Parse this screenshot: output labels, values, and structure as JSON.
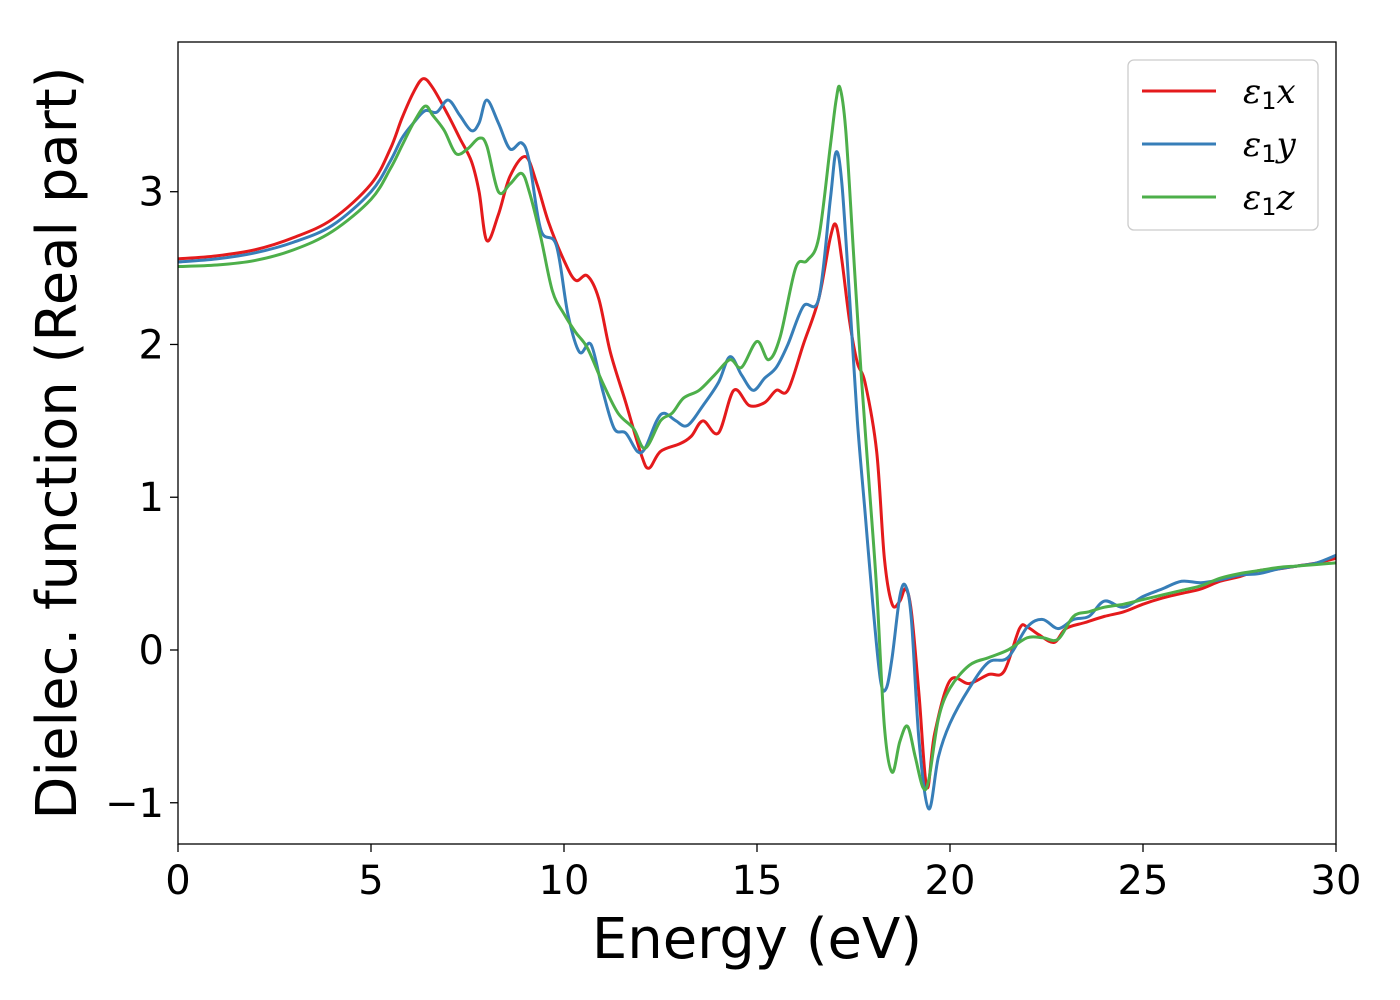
{
  "chart_data": {
    "type": "line",
    "xlabel": "Energy (eV)",
    "ylabel": "Dielec. function (Real part)",
    "xlim": [
      0,
      30
    ],
    "ylim": [
      -1.27,
      3.98
    ],
    "xticks": [
      0,
      5,
      10,
      15,
      20,
      25,
      30
    ],
    "xtick_labels": [
      "0",
      "5",
      "10",
      "15",
      "20",
      "25",
      "30"
    ],
    "yticks": [
      -1,
      0,
      1,
      2,
      3
    ],
    "ytick_labels": [
      "−1",
      "0",
      "1",
      "2",
      "3"
    ],
    "grid": false,
    "legend_position": "top-right",
    "series": [
      {
        "name": "ε₁x",
        "legend_base": "ε",
        "legend_sub": "1",
        "legend_var": "x",
        "color": "#e41a1c",
        "x": [
          0,
          1,
          2,
          3,
          4,
          5,
          5.5,
          5.8,
          6.1,
          6.35,
          6.6,
          7.0,
          7.3,
          7.6,
          7.8,
          8.0,
          8.3,
          8.6,
          9.0,
          9.3,
          9.6,
          10.0,
          10.3,
          10.6,
          10.9,
          11.2,
          11.6,
          12.0,
          12.2,
          12.5,
          13.0,
          13.3,
          13.6,
          14.0,
          14.4,
          14.8,
          15.2,
          15.5,
          15.8,
          16.2,
          16.6,
          16.9,
          17.05,
          17.2,
          17.4,
          17.6,
          17.8,
          18.1,
          18.3,
          18.5,
          18.7,
          18.85,
          19.0,
          19.2,
          19.4,
          19.6,
          20.0,
          20.5,
          21.0,
          21.4,
          21.8,
          22.0,
          22.3,
          22.7,
          23.0,
          23.5,
          24.0,
          24.5,
          25.0,
          25.5,
          26.0,
          26.5,
          27.0,
          27.5,
          28.0,
          28.5,
          29.0,
          29.5,
          30.0
        ],
        "y": [
          2.56,
          2.58,
          2.62,
          2.7,
          2.82,
          3.05,
          3.28,
          3.48,
          3.65,
          3.74,
          3.68,
          3.5,
          3.35,
          3.2,
          3.0,
          2.68,
          2.85,
          3.1,
          3.23,
          3.05,
          2.8,
          2.55,
          2.42,
          2.45,
          2.3,
          1.95,
          1.62,
          1.28,
          1.19,
          1.3,
          1.35,
          1.4,
          1.5,
          1.42,
          1.7,
          1.6,
          1.62,
          1.7,
          1.7,
          2.0,
          2.3,
          2.7,
          2.78,
          2.55,
          2.15,
          1.88,
          1.75,
          1.3,
          0.6,
          0.3,
          0.32,
          0.4,
          0.25,
          -0.3,
          -0.9,
          -0.55,
          -0.2,
          -0.22,
          -0.16,
          -0.14,
          0.14,
          0.15,
          0.1,
          0.05,
          0.14,
          0.18,
          0.22,
          0.25,
          0.3,
          0.34,
          0.37,
          0.4,
          0.45,
          0.48,
          0.52,
          0.53,
          0.55,
          0.57,
          0.6
        ]
      },
      {
        "name": "ε₁y",
        "legend_base": "ε",
        "legend_sub": "1",
        "legend_var": "y",
        "color": "#377eb8",
        "x": [
          0,
          1,
          2,
          3,
          4,
          5,
          5.5,
          5.8,
          6.1,
          6.4,
          6.7,
          7.0,
          7.3,
          7.6,
          7.8,
          8.0,
          8.3,
          8.6,
          8.9,
          9.1,
          9.4,
          9.8,
          10.1,
          10.4,
          10.7,
          11.0,
          11.3,
          11.6,
          11.9,
          12.1,
          12.4,
          12.6,
          12.9,
          13.2,
          13.6,
          14.0,
          14.3,
          14.6,
          14.9,
          15.2,
          15.5,
          15.8,
          16.2,
          16.6,
          16.9,
          17.05,
          17.2,
          17.4,
          17.6,
          17.8,
          18.0,
          18.2,
          18.35,
          18.5,
          18.7,
          18.85,
          19.0,
          19.2,
          19.45,
          19.7,
          20.0,
          20.5,
          21.0,
          21.5,
          22.0,
          22.4,
          22.8,
          23.2,
          23.6,
          24.0,
          24.5,
          25.0,
          25.5,
          26.0,
          26.5,
          27.0,
          27.5,
          28.0,
          28.5,
          29.0,
          29.5,
          30.0
        ],
        "y": [
          2.54,
          2.56,
          2.6,
          2.67,
          2.78,
          3.0,
          3.2,
          3.35,
          3.45,
          3.53,
          3.52,
          3.6,
          3.5,
          3.4,
          3.45,
          3.6,
          3.45,
          3.28,
          3.32,
          3.2,
          2.75,
          2.65,
          2.2,
          1.95,
          2.0,
          1.7,
          1.45,
          1.42,
          1.3,
          1.32,
          1.5,
          1.55,
          1.5,
          1.47,
          1.6,
          1.75,
          1.92,
          1.8,
          1.7,
          1.78,
          1.85,
          2.0,
          2.25,
          2.3,
          2.95,
          3.26,
          3.05,
          2.3,
          1.5,
          0.9,
          0.3,
          -0.2,
          -0.25,
          -0.05,
          0.35,
          0.42,
          0.2,
          -0.6,
          -1.04,
          -0.7,
          -0.48,
          -0.25,
          -0.08,
          -0.05,
          0.15,
          0.2,
          0.14,
          0.2,
          0.22,
          0.32,
          0.28,
          0.35,
          0.4,
          0.45,
          0.44,
          0.46,
          0.49,
          0.5,
          0.53,
          0.55,
          0.57,
          0.62
        ]
      },
      {
        "name": "ε₁z",
        "legend_base": "ε",
        "legend_sub": "1",
        "legend_var": "z",
        "color": "#4daf4a",
        "x": [
          0,
          1,
          2,
          3,
          4,
          5,
          5.5,
          5.8,
          6.1,
          6.4,
          6.6,
          6.9,
          7.2,
          7.5,
          7.8,
          8.0,
          8.3,
          8.6,
          8.9,
          9.1,
          9.4,
          9.7,
          10.0,
          10.3,
          10.6,
          11.0,
          11.4,
          11.8,
          12.1,
          12.5,
          12.8,
          13.1,
          13.5,
          13.9,
          14.3,
          14.6,
          15.0,
          15.3,
          15.6,
          16.0,
          16.3,
          16.6,
          16.9,
          17.05,
          17.15,
          17.3,
          17.5,
          17.7,
          17.9,
          18.1,
          18.3,
          18.5,
          18.7,
          18.9,
          19.1,
          19.3,
          19.45,
          19.7,
          20.0,
          20.5,
          21.0,
          21.5,
          22.0,
          22.4,
          22.8,
          23.2,
          23.6,
          24.0,
          24.5,
          25.0,
          25.5,
          26.0,
          26.5,
          27.0,
          27.5,
          28.0,
          28.5,
          29.0,
          29.5,
          30.0
        ],
        "y": [
          2.51,
          2.52,
          2.55,
          2.62,
          2.74,
          2.95,
          3.15,
          3.3,
          3.45,
          3.56,
          3.5,
          3.4,
          3.25,
          3.28,
          3.35,
          3.3,
          3.0,
          3.05,
          3.12,
          3.0,
          2.7,
          2.35,
          2.2,
          2.08,
          1.98,
          1.75,
          1.55,
          1.45,
          1.32,
          1.5,
          1.55,
          1.65,
          1.7,
          1.8,
          1.9,
          1.85,
          2.02,
          1.9,
          2.05,
          2.5,
          2.55,
          2.7,
          3.3,
          3.6,
          3.68,
          3.4,
          2.6,
          1.8,
          1.1,
          0.4,
          -0.5,
          -0.8,
          -0.6,
          -0.5,
          -0.7,
          -0.9,
          -0.85,
          -0.45,
          -0.25,
          -0.1,
          -0.05,
          0.0,
          0.08,
          0.08,
          0.07,
          0.22,
          0.25,
          0.28,
          0.3,
          0.33,
          0.36,
          0.39,
          0.42,
          0.47,
          0.5,
          0.52,
          0.54,
          0.55,
          0.56,
          0.57
        ]
      }
    ]
  }
}
